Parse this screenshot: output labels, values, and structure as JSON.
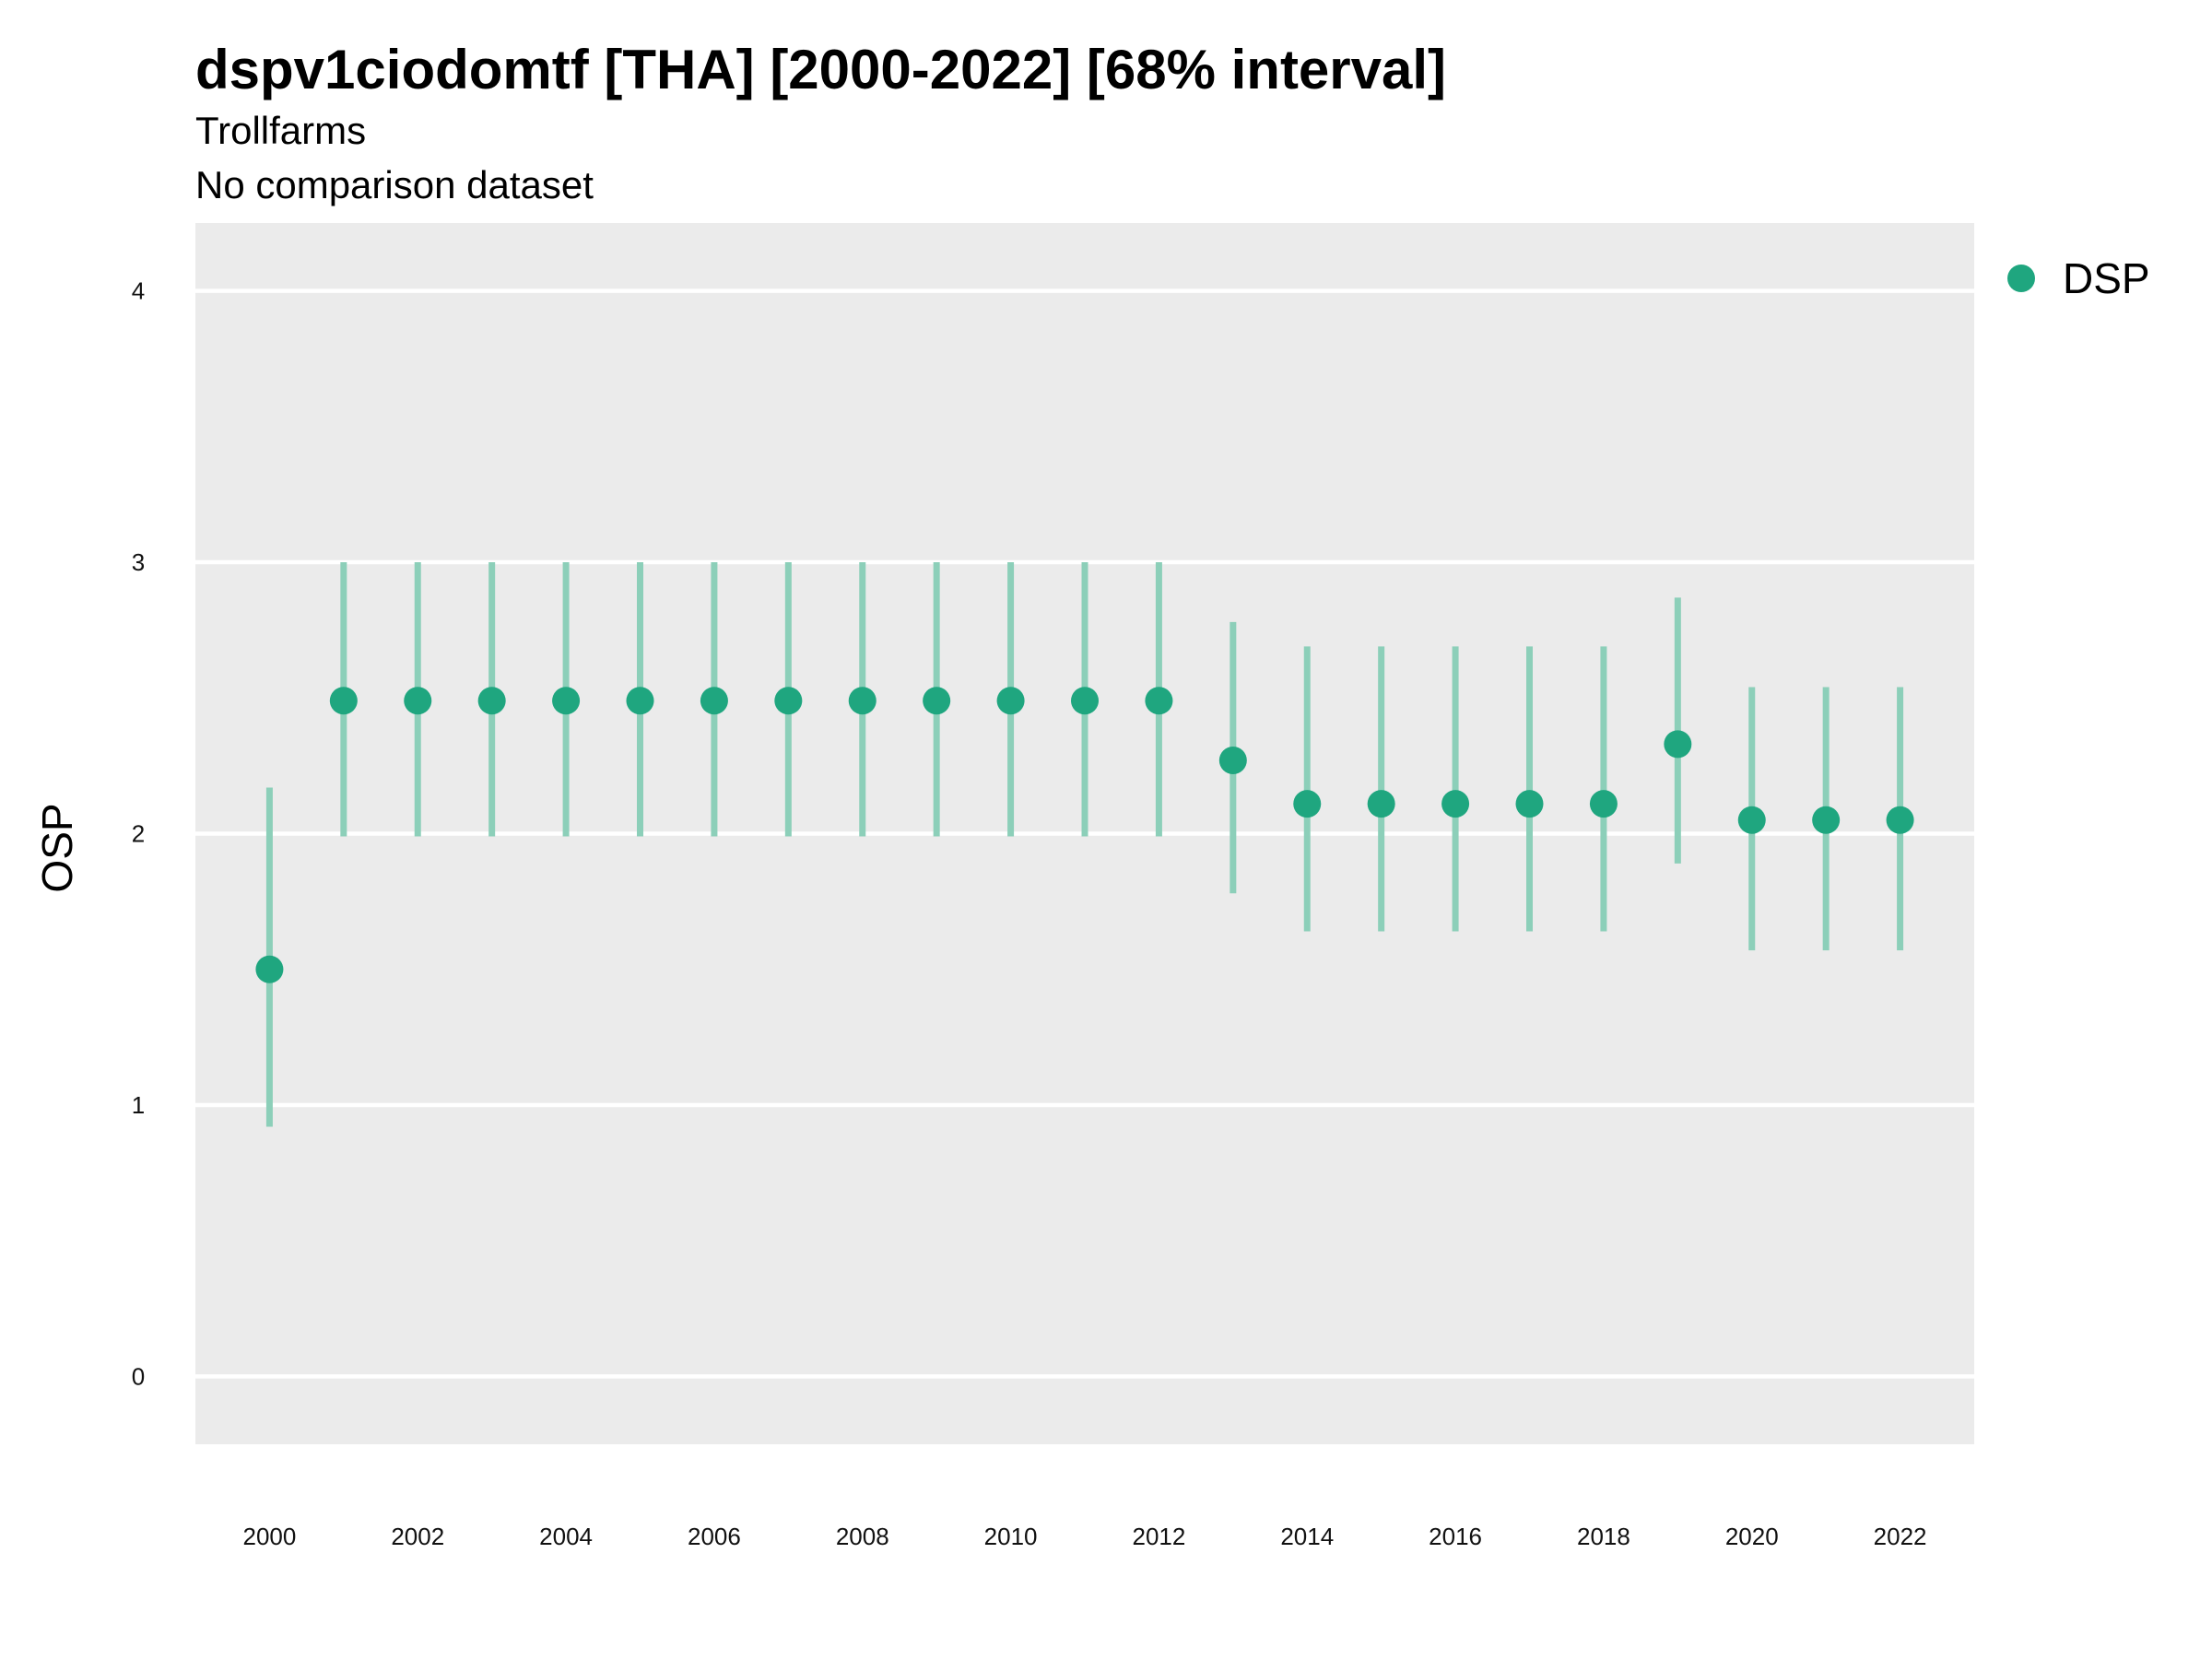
{
  "chart_data": {
    "type": "scatter",
    "title": "dspv1ciodomtf [THA] [2000-2022] [68% interval]",
    "subtitle": "Trollfarms",
    "caption_line": "No comparison dataset",
    "xlabel": "",
    "ylabel": "OSP",
    "ylim": [
      -0.25,
      4.25
    ],
    "xlim": [
      1999,
      2023
    ],
    "y_ticks": [
      0,
      1,
      2,
      3,
      4
    ],
    "x_ticks": [
      2000,
      2002,
      2004,
      2006,
      2008,
      2010,
      2012,
      2014,
      2016,
      2018,
      2020,
      2022
    ],
    "grid": true,
    "legend_position": "right",
    "colors": {
      "point": "#1fa67f",
      "interval": "#8ccfb9",
      "panel": "#ebebeb",
      "grid": "#ffffff"
    },
    "series": [
      {
        "name": "DSP",
        "x": [
          2000,
          2001,
          2002,
          2003,
          2004,
          2005,
          2006,
          2007,
          2008,
          2009,
          2010,
          2011,
          2012,
          2013,
          2014,
          2015,
          2016,
          2017,
          2018,
          2019,
          2020,
          2021,
          2022
        ],
        "y": [
          1.5,
          2.49,
          2.49,
          2.49,
          2.49,
          2.49,
          2.49,
          2.49,
          2.49,
          2.49,
          2.49,
          2.49,
          2.49,
          2.27,
          2.11,
          2.11,
          2.11,
          2.11,
          2.11,
          2.33,
          2.05,
          2.05,
          2.05
        ],
        "lower": [
          0.92,
          1.99,
          1.99,
          1.99,
          1.99,
          1.99,
          1.99,
          1.99,
          1.99,
          1.99,
          1.99,
          1.99,
          1.99,
          1.78,
          1.64,
          1.64,
          1.64,
          1.64,
          1.64,
          1.89,
          1.57,
          1.57,
          1.57
        ],
        "upper": [
          2.17,
          3.0,
          3.0,
          3.0,
          3.0,
          3.0,
          3.0,
          3.0,
          3.0,
          3.0,
          3.0,
          3.0,
          3.0,
          2.78,
          2.69,
          2.69,
          2.69,
          2.69,
          2.69,
          2.87,
          2.54,
          2.54,
          2.54
        ]
      }
    ]
  }
}
